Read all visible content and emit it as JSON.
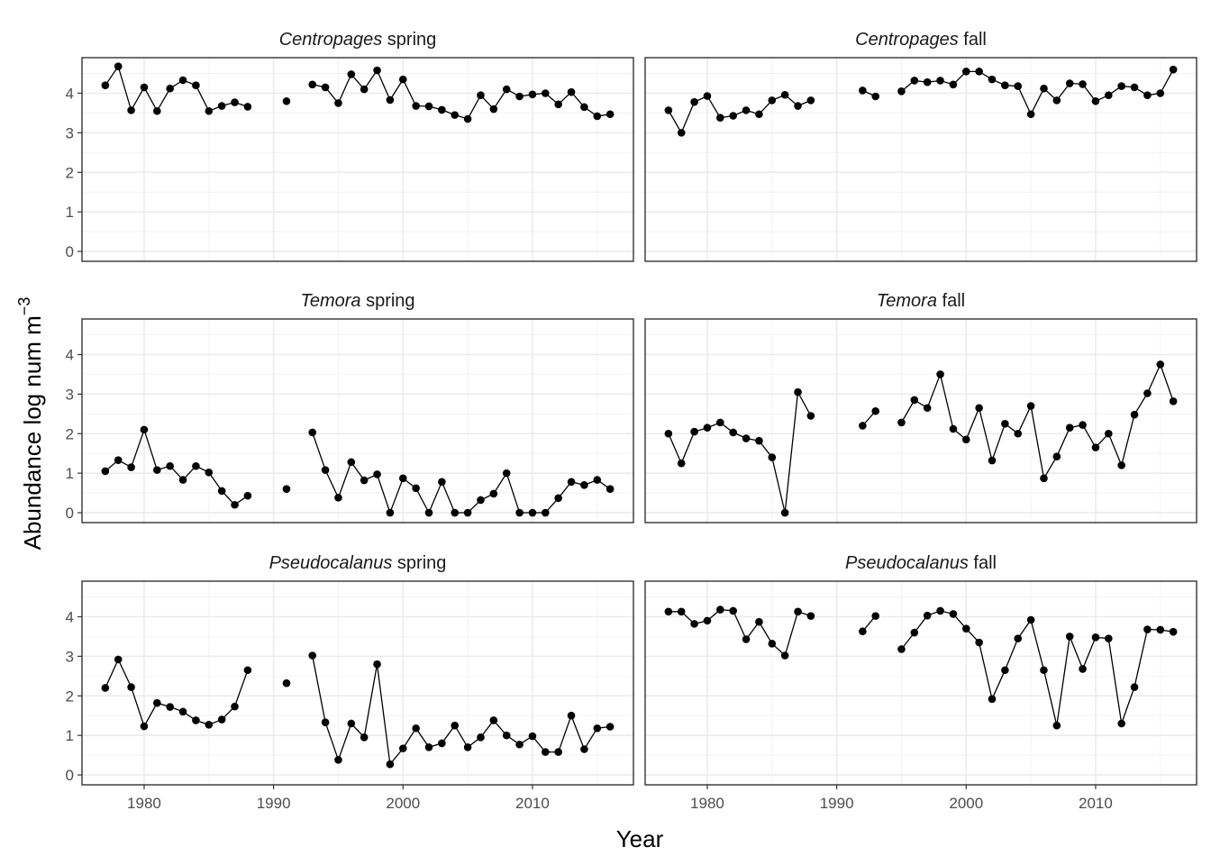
{
  "chart_data": {
    "type": "line",
    "xlabel": "Year",
    "ylabel": "Abundance log num m",
    "ylabel_superscript": "−3",
    "xlim": [
      1975.2,
      2017.8
    ],
    "ylim": [
      -0.25,
      4.9
    ],
    "x_ticks": [
      1980,
      1990,
      2000,
      2010
    ],
    "y_ticks": [
      0,
      1,
      2,
      3,
      4
    ],
    "grid": true,
    "point_color": "#000000",
    "line_color": "#000000",
    "panels": [
      {
        "species": "Centropages",
        "season": "spring",
        "points": [
          [
            1977,
            4.2
          ],
          [
            1978,
            4.68
          ],
          [
            1979,
            3.57
          ],
          [
            1980,
            4.15
          ],
          [
            1981,
            3.55
          ],
          [
            1982,
            4.12
          ],
          [
            1983,
            4.33
          ],
          [
            1984,
            4.2
          ],
          [
            1985,
            3.55
          ],
          [
            1986,
            3.68
          ],
          [
            1987,
            3.77
          ],
          [
            1988,
            3.66
          ],
          [
            1991,
            3.8
          ],
          [
            1993,
            4.22
          ],
          [
            1994,
            4.15
          ],
          [
            1995,
            3.75
          ],
          [
            1996,
            4.48
          ],
          [
            1997,
            4.1
          ],
          [
            1998,
            4.58
          ],
          [
            1999,
            3.83
          ],
          [
            2000,
            4.35
          ],
          [
            2001,
            3.68
          ],
          [
            2002,
            3.67
          ],
          [
            2003,
            3.58
          ],
          [
            2004,
            3.45
          ],
          [
            2005,
            3.35
          ],
          [
            2006,
            3.95
          ],
          [
            2007,
            3.6
          ],
          [
            2008,
            4.1
          ],
          [
            2009,
            3.92
          ],
          [
            2010,
            3.97
          ],
          [
            2011,
            4.0
          ],
          [
            2012,
            3.72
          ],
          [
            2013,
            4.03
          ],
          [
            2014,
            3.65
          ],
          [
            2015,
            3.42
          ],
          [
            2016,
            3.47
          ]
        ],
        "segments": [
          [
            1977,
            1988
          ],
          [
            1993,
            2016
          ]
        ]
      },
      {
        "species": "Centropages",
        "season": "fall",
        "points": [
          [
            1977,
            3.57
          ],
          [
            1978,
            3.0
          ],
          [
            1979,
            3.78
          ],
          [
            1980,
            3.93
          ],
          [
            1981,
            3.38
          ],
          [
            1982,
            3.43
          ],
          [
            1983,
            3.57
          ],
          [
            1984,
            3.47
          ],
          [
            1985,
            3.82
          ],
          [
            1986,
            3.96
          ],
          [
            1987,
            3.68
          ],
          [
            1988,
            3.82
          ],
          [
            1992,
            4.07
          ],
          [
            1993,
            3.92
          ],
          [
            1995,
            4.05
          ],
          [
            1996,
            4.32
          ],
          [
            1997,
            4.28
          ],
          [
            1998,
            4.32
          ],
          [
            1999,
            4.22
          ],
          [
            2000,
            4.55
          ],
          [
            2001,
            4.55
          ],
          [
            2002,
            4.35
          ],
          [
            2003,
            4.2
          ],
          [
            2004,
            4.18
          ],
          [
            2005,
            3.47
          ],
          [
            2006,
            4.12
          ],
          [
            2007,
            3.82
          ],
          [
            2008,
            4.25
          ],
          [
            2009,
            4.23
          ],
          [
            2010,
            3.8
          ],
          [
            2011,
            3.95
          ],
          [
            2012,
            4.18
          ],
          [
            2013,
            4.15
          ],
          [
            2014,
            3.95
          ],
          [
            2015,
            4.0
          ],
          [
            2016,
            4.6
          ]
        ],
        "segments": [
          [
            1977,
            1988
          ],
          [
            1992,
            1993
          ],
          [
            1995,
            2016
          ]
        ]
      },
      {
        "species": "Temora",
        "season": "spring",
        "points": [
          [
            1977,
            1.05
          ],
          [
            1978,
            1.33
          ],
          [
            1979,
            1.15
          ],
          [
            1980,
            2.1
          ],
          [
            1981,
            1.08
          ],
          [
            1982,
            1.18
          ],
          [
            1983,
            0.83
          ],
          [
            1984,
            1.18
          ],
          [
            1985,
            1.02
          ],
          [
            1986,
            0.55
          ],
          [
            1987,
            0.2
          ],
          [
            1988,
            0.43
          ],
          [
            1991,
            0.6
          ],
          [
            1993,
            2.03
          ],
          [
            1994,
            1.08
          ],
          [
            1995,
            0.38
          ],
          [
            1996,
            1.28
          ],
          [
            1997,
            0.82
          ],
          [
            1998,
            0.97
          ],
          [
            1999,
            0.0
          ],
          [
            2000,
            0.87
          ],
          [
            2001,
            0.62
          ],
          [
            2002,
            0.0
          ],
          [
            2003,
            0.78
          ],
          [
            2004,
            0.0
          ],
          [
            2005,
            0.0
          ],
          [
            2006,
            0.32
          ],
          [
            2007,
            0.48
          ],
          [
            2008,
            1.0
          ],
          [
            2009,
            0.0
          ],
          [
            2010,
            0.0
          ],
          [
            2011,
            0.0
          ],
          [
            2012,
            0.37
          ],
          [
            2013,
            0.78
          ],
          [
            2014,
            0.7
          ],
          [
            2015,
            0.83
          ],
          [
            2016,
            0.6
          ]
        ],
        "segments": [
          [
            1977,
            1988
          ],
          [
            1993,
            2016
          ]
        ]
      },
      {
        "species": "Temora",
        "season": "fall",
        "points": [
          [
            1977,
            2.0
          ],
          [
            1978,
            1.25
          ],
          [
            1979,
            2.05
          ],
          [
            1980,
            2.15
          ],
          [
            1981,
            2.28
          ],
          [
            1982,
            2.03
          ],
          [
            1983,
            1.88
          ],
          [
            1984,
            1.82
          ],
          [
            1985,
            1.4
          ],
          [
            1986,
            0.0
          ],
          [
            1987,
            3.05
          ],
          [
            1988,
            2.45
          ],
          [
            1992,
            2.2
          ],
          [
            1993,
            2.57
          ],
          [
            1995,
            2.28
          ],
          [
            1996,
            2.85
          ],
          [
            1997,
            2.65
          ],
          [
            1998,
            3.5
          ],
          [
            1999,
            2.12
          ],
          [
            2000,
            1.85
          ],
          [
            2001,
            2.65
          ],
          [
            2002,
            1.32
          ],
          [
            2003,
            2.25
          ],
          [
            2004,
            2.0
          ],
          [
            2005,
            2.7
          ],
          [
            2006,
            0.87
          ],
          [
            2007,
            1.42
          ],
          [
            2008,
            2.15
          ],
          [
            2009,
            2.22
          ],
          [
            2010,
            1.65
          ],
          [
            2011,
            2.0
          ],
          [
            2012,
            1.2
          ],
          [
            2013,
            2.48
          ],
          [
            2014,
            3.02
          ],
          [
            2015,
            3.75
          ],
          [
            2016,
            2.82
          ]
        ],
        "segments": [
          [
            1977,
            1988
          ],
          [
            1992,
            1993
          ],
          [
            1995,
            2016
          ]
        ]
      },
      {
        "species": "Pseudocalanus",
        "season": "spring",
        "points": [
          [
            1977,
            2.2
          ],
          [
            1978,
            2.92
          ],
          [
            1979,
            2.22
          ],
          [
            1980,
            1.23
          ],
          [
            1981,
            1.82
          ],
          [
            1982,
            1.72
          ],
          [
            1983,
            1.6
          ],
          [
            1984,
            1.38
          ],
          [
            1985,
            1.27
          ],
          [
            1986,
            1.4
          ],
          [
            1987,
            1.73
          ],
          [
            1988,
            2.65
          ],
          [
            1991,
            2.32
          ],
          [
            1993,
            3.02
          ],
          [
            1994,
            1.33
          ],
          [
            1995,
            0.38
          ],
          [
            1996,
            1.3
          ],
          [
            1997,
            0.95
          ],
          [
            1998,
            2.8
          ],
          [
            1999,
            0.27
          ],
          [
            2000,
            0.67
          ],
          [
            2001,
            1.18
          ],
          [
            2002,
            0.7
          ],
          [
            2003,
            0.8
          ],
          [
            2004,
            1.25
          ],
          [
            2005,
            0.7
          ],
          [
            2006,
            0.95
          ],
          [
            2007,
            1.38
          ],
          [
            2008,
            1.0
          ],
          [
            2009,
            0.77
          ],
          [
            2010,
            0.98
          ],
          [
            2011,
            0.58
          ],
          [
            2012,
            0.58
          ],
          [
            2013,
            1.5
          ],
          [
            2014,
            0.65
          ],
          [
            2015,
            1.18
          ],
          [
            2016,
            1.22
          ]
        ],
        "segments": [
          [
            1977,
            1988
          ],
          [
            1993,
            2016
          ]
        ]
      },
      {
        "species": "Pseudocalanus",
        "season": "fall",
        "points": [
          [
            1977,
            4.13
          ],
          [
            1978,
            4.13
          ],
          [
            1979,
            3.82
          ],
          [
            1980,
            3.9
          ],
          [
            1981,
            4.18
          ],
          [
            1982,
            4.15
          ],
          [
            1983,
            3.43
          ],
          [
            1984,
            3.87
          ],
          [
            1985,
            3.32
          ],
          [
            1986,
            3.02
          ],
          [
            1987,
            4.13
          ],
          [
            1988,
            4.02
          ],
          [
            1992,
            3.63
          ],
          [
            1993,
            4.02
          ],
          [
            1995,
            3.18
          ],
          [
            1996,
            3.6
          ],
          [
            1997,
            4.03
          ],
          [
            1998,
            4.15
          ],
          [
            1999,
            4.07
          ],
          [
            2000,
            3.7
          ],
          [
            2001,
            3.35
          ],
          [
            2002,
            1.92
          ],
          [
            2003,
            2.65
          ],
          [
            2004,
            3.45
          ],
          [
            2005,
            3.92
          ],
          [
            2006,
            2.65
          ],
          [
            2007,
            1.25
          ],
          [
            2008,
            3.5
          ],
          [
            2009,
            2.68
          ],
          [
            2010,
            3.48
          ],
          [
            2011,
            3.45
          ],
          [
            2012,
            1.3
          ],
          [
            2013,
            2.22
          ],
          [
            2014,
            3.68
          ],
          [
            2015,
            3.67
          ],
          [
            2016,
            3.62
          ]
        ],
        "segments": [
          [
            1977,
            1988
          ],
          [
            1992,
            1993
          ],
          [
            1995,
            2016
          ]
        ]
      }
    ]
  }
}
